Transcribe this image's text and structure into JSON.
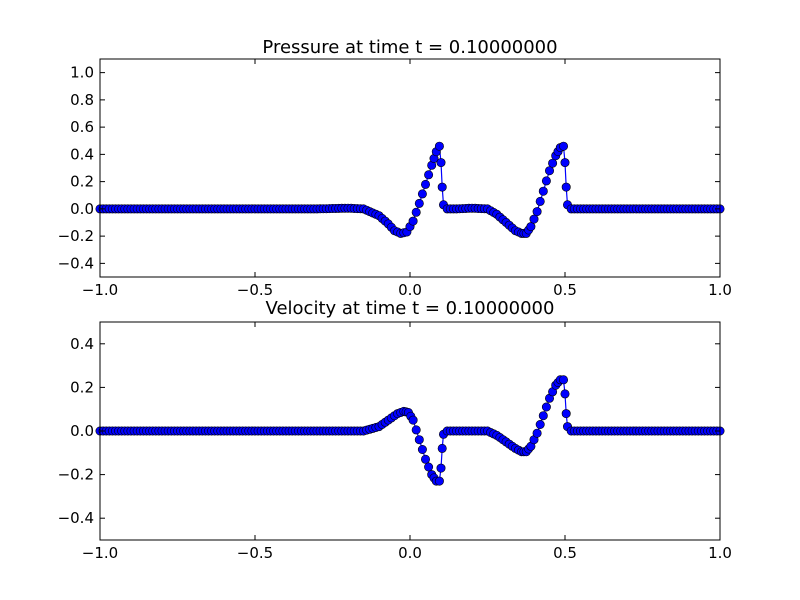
{
  "chart_data": [
    {
      "type": "line",
      "title": "Pressure at time t =     0.10000000",
      "xlabel": "",
      "ylabel": "",
      "xlim": [
        -1.0,
        1.0
      ],
      "ylim": [
        -0.5,
        1.1
      ],
      "xticks": [
        -1.0,
        -0.5,
        0.0,
        0.5,
        1.0
      ],
      "xtick_labels": [
        "−1.0",
        "−0.5",
        "0.0",
        "0.5",
        "1.0"
      ],
      "yticks": [
        -0.4,
        -0.2,
        0.0,
        0.2,
        0.4,
        0.6,
        0.8,
        1.0
      ],
      "ytick_labels": [
        "−0.4",
        "−0.2",
        "0.0",
        "0.2",
        "0.4",
        "0.6",
        "0.8",
        "1.0"
      ],
      "grid": false,
      "line_color": "#0000ff",
      "marker": "circle",
      "marker_color": "#0000ff",
      "marker_edge_color": "#000000",
      "series": [
        {
          "x": [
            -1.0,
            -0.5,
            -0.3,
            -0.2,
            -0.15,
            -0.1,
            -0.07,
            -0.05,
            -0.03,
            -0.01,
            0.01,
            0.03,
            0.05,
            0.07,
            0.085,
            0.095,
            0.1,
            0.104,
            0.108,
            0.12,
            0.15,
            0.2,
            0.25,
            0.28,
            0.31,
            0.34,
            0.36,
            0.375,
            0.39,
            0.41,
            0.43,
            0.45,
            0.47,
            0.485,
            0.495,
            0.5,
            0.504,
            0.508,
            0.52,
            0.6,
            0.8,
            1.0
          ],
          "y": [
            0.0,
            0.0,
            0.0,
            0.005,
            0.0,
            -0.05,
            -0.11,
            -0.16,
            -0.18,
            -0.17,
            -0.09,
            0.04,
            0.18,
            0.32,
            0.42,
            0.46,
            0.34,
            0.16,
            0.03,
            0.0,
            0.0,
            0.005,
            0.0,
            -0.04,
            -0.1,
            -0.16,
            -0.18,
            -0.18,
            -0.13,
            -0.02,
            0.13,
            0.28,
            0.39,
            0.45,
            0.46,
            0.34,
            0.16,
            0.03,
            0.0,
            0.0,
            0.0,
            0.0
          ]
        }
      ]
    },
    {
      "type": "line",
      "title": "Velocity at time t =     0.10000000",
      "xlabel": "",
      "ylabel": "",
      "xlim": [
        -1.0,
        1.0
      ],
      "ylim": [
        -0.5,
        0.5
      ],
      "xticks": [
        -1.0,
        -0.5,
        0.0,
        0.5,
        1.0
      ],
      "xtick_labels": [
        "−1.0",
        "−0.5",
        "0.0",
        "0.5",
        "1.0"
      ],
      "yticks": [
        -0.4,
        -0.2,
        0.0,
        0.2,
        0.4
      ],
      "ytick_labels": [
        "−0.4",
        "−0.2",
        "0.0",
        "0.2",
        "0.4"
      ],
      "grid": false,
      "line_color": "#0000ff",
      "marker": "circle",
      "marker_color": "#0000ff",
      "marker_edge_color": "#000000",
      "series": [
        {
          "x": [
            -1.0,
            -0.5,
            -0.3,
            -0.2,
            -0.15,
            -0.1,
            -0.07,
            -0.04,
            -0.02,
            -0.005,
            0.01,
            0.03,
            0.05,
            0.07,
            0.085,
            0.095,
            0.1,
            0.104,
            0.108,
            0.12,
            0.2,
            0.25,
            0.28,
            0.31,
            0.34,
            0.36,
            0.375,
            0.39,
            0.41,
            0.43,
            0.45,
            0.47,
            0.485,
            0.495,
            0.5,
            0.504,
            0.508,
            0.52,
            0.6,
            0.8,
            1.0
          ],
          "y": [
            0.0,
            0.0,
            0.0,
            0.0,
            0.0,
            0.02,
            0.05,
            0.08,
            0.09,
            0.085,
            0.05,
            -0.04,
            -0.13,
            -0.2,
            -0.23,
            -0.23,
            -0.17,
            -0.08,
            -0.015,
            0.0,
            0.0,
            0.0,
            -0.02,
            -0.05,
            -0.08,
            -0.095,
            -0.095,
            -0.07,
            -0.01,
            0.07,
            0.15,
            0.21,
            0.235,
            0.235,
            0.17,
            0.08,
            0.02,
            0.0,
            0.0,
            0.0,
            0.0
          ]
        }
      ]
    }
  ]
}
